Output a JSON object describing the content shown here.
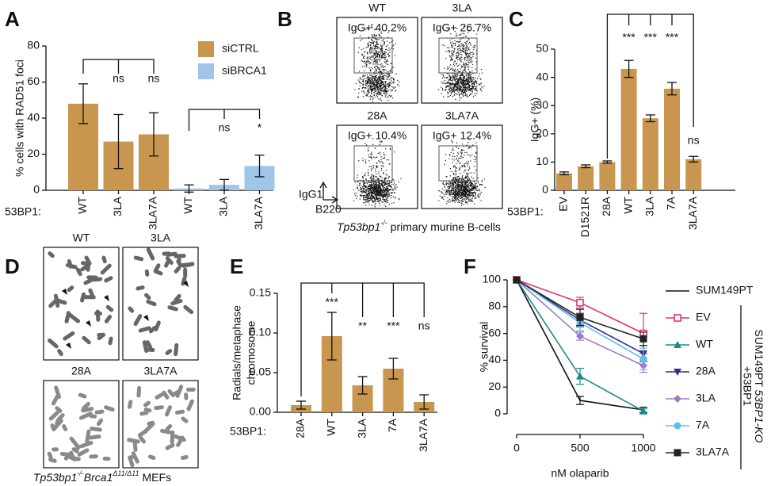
{
  "chart_data": [
    {
      "panel": "A",
      "type": "bar",
      "ylabel": "% cells with RAD51 foci",
      "x_prefix": "53BP1:",
      "categories": [
        "WT",
        "3LA",
        "3LA7A",
        "WT",
        "3LA",
        "3LA7A"
      ],
      "series": [
        {
          "name": "siCTRL",
          "color": "#c8964e",
          "values": [
            48,
            27,
            31,
            null,
            null,
            null
          ],
          "errors": [
            11,
            15,
            12,
            null,
            null,
            null
          ]
        },
        {
          "name": "siBRCA1",
          "color": "#9fc5e8",
          "values": [
            null,
            null,
            null,
            1,
            3,
            13.5
          ],
          "errors": [
            null,
            null,
            null,
            2,
            3,
            6
          ]
        }
      ],
      "significance": [
        null,
        "ns",
        "ns",
        null,
        "ns",
        "*"
      ],
      "ylim": [
        0,
        80
      ],
      "yticks": [
        0,
        20,
        40,
        60,
        80
      ]
    },
    {
      "panel": "C",
      "type": "bar",
      "ylabel": "IgG+ (%)",
      "x_prefix": "53BP1:",
      "categories": [
        "EV",
        "D1521R",
        "28A",
        "WT",
        "3LA",
        "7A",
        "3LA7A"
      ],
      "series": [
        {
          "color": "#c8964e",
          "values": [
            6,
            8.5,
            10,
            43,
            25.5,
            36,
            11
          ],
          "errors": [
            0.5,
            0.5,
            0.4,
            3,
            1.2,
            2.2,
            1
          ]
        }
      ],
      "significance": [
        null,
        null,
        null,
        "***",
        "***",
        "***",
        "ns"
      ],
      "ylim": [
        0,
        50
      ],
      "yticks": [
        0,
        10,
        20,
        30,
        40,
        50
      ]
    },
    {
      "panel": "E",
      "type": "bar",
      "ylabel": [
        "Radials/metaphase",
        "chromosome"
      ],
      "x_prefix": "53BP1:",
      "categories": [
        "28A",
        "WT",
        "3LA",
        "7A",
        "3LA7A"
      ],
      "series": [
        {
          "color": "#c8964e",
          "values": [
            0.009,
            0.096,
            0.034,
            0.055,
            0.013
          ],
          "errors": [
            0.005,
            0.03,
            0.011,
            0.013,
            0.009
          ]
        }
      ],
      "significance": [
        null,
        "***",
        "**",
        "***",
        "ns"
      ],
      "ylim": [
        0,
        0.15
      ],
      "yticks": [
        {
          "value": 0,
          "label": "0.00"
        },
        {
          "value": 0.05,
          "label": "0.05"
        },
        {
          "value": 0.1,
          "label": "0.10"
        },
        {
          "value": 0.15,
          "label": "0.15"
        }
      ]
    },
    {
      "panel": "F",
      "type": "line",
      "xlabel": "nM olaparib",
      "ylabel": "% survival",
      "x": [
        0,
        500,
        1000
      ],
      "xlim": [
        0,
        1000
      ],
      "xticks": [
        0,
        500,
        1000
      ],
      "ylim": [
        0,
        100
      ],
      "yticks": [
        0,
        20,
        40,
        60,
        80,
        100
      ],
      "series": [
        {
          "name": "SUM149PT",
          "color": "#111111",
          "marker": "none",
          "values": [
            100,
            10,
            3
          ],
          "errors": [
            0,
            3,
            2
          ]
        },
        {
          "name": "EV",
          "color": "#e5336b",
          "marker": "open-square",
          "values": [
            100,
            83,
            60
          ],
          "errors": [
            0,
            4,
            15
          ]
        },
        {
          "name": "WT",
          "color": "#1a8a8a",
          "marker": "triangle",
          "values": [
            100,
            28,
            2
          ],
          "errors": [
            0,
            6,
            2
          ]
        },
        {
          "name": "28A",
          "color": "#3b2a8a",
          "marker": "triangle-down",
          "values": [
            100,
            70,
            45
          ],
          "errors": [
            0,
            5,
            6
          ]
        },
        {
          "name": "3LA",
          "color": "#9a7bc8",
          "marker": "diamond",
          "values": [
            100,
            58,
            36
          ],
          "errors": [
            0,
            3,
            5
          ]
        },
        {
          "name": "7A",
          "color": "#5bc0eb",
          "marker": "circle",
          "values": [
            100,
            68,
            41
          ],
          "errors": [
            0,
            6,
            8
          ]
        },
        {
          "name": "3LA7A",
          "color": "#222222",
          "marker": "square",
          "values": [
            100,
            72,
            56
          ],
          "errors": [
            0,
            6,
            5
          ]
        }
      ],
      "legend_note": [
        "SUM149PT ",
        "53BP1-KO",
        "+53BP1"
      ]
    }
  ],
  "panels": {
    "B": {
      "letter": "B",
      "plots": [
        {
          "label": "WT",
          "gate": "IgG+ 40.2%"
        },
        {
          "label": "3LA",
          "gate": "IgG+ 26.7%"
        },
        {
          "label": "28A",
          "gate": "IgG+ 10.4%"
        },
        {
          "label": "3LA7A",
          "gate": "IgG+ 12.4%"
        }
      ],
      "y_axis": "IgG1",
      "x_axis": "B220",
      "caption": [
        "Tp53bp1",
        "-/-",
        " primary murine B-cells"
      ]
    },
    "D": {
      "letter": "D",
      "images": [
        "WT",
        "3LA",
        "28A",
        "3LA7A"
      ],
      "caption": [
        "Tp53bp1",
        "-/-",
        "Brca1",
        "Δ11/Δ11",
        " MEFs"
      ]
    }
  }
}
